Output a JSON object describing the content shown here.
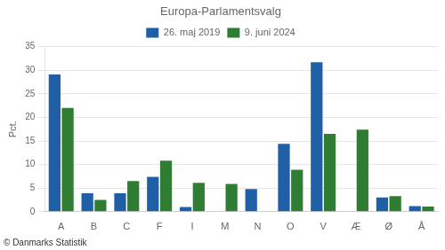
{
  "chart_data": {
    "type": "bar",
    "title": "Europa-Parlamentsvalg",
    "ylabel": "Pct.",
    "footnote": "© Danmarks Statistik",
    "categories": [
      "A",
      "B",
      "C",
      "F",
      "I",
      "M",
      "N",
      "O",
      "V",
      "Æ",
      "Ø",
      "Å"
    ],
    "series": [
      {
        "name": "26. maj 2019",
        "color": "#1f5fa6",
        "values": [
          29.1,
          3.9,
          3.9,
          7.4,
          1.0,
          0.0,
          4.8,
          14.4,
          31.7,
          0.0,
          3.0,
          1.2
        ]
      },
      {
        "name": "9. juni 2024",
        "color": "#2e7d32",
        "values": [
          22.0,
          2.5,
          6.5,
          10.8,
          6.1,
          5.9,
          0.0,
          8.9,
          16.5,
          17.4,
          3.3,
          1.1
        ]
      }
    ],
    "ylim": [
      0,
      35
    ],
    "yticks": [
      0,
      5,
      10,
      15,
      20,
      25,
      30,
      35
    ],
    "grid": true,
    "legend": "top"
  }
}
